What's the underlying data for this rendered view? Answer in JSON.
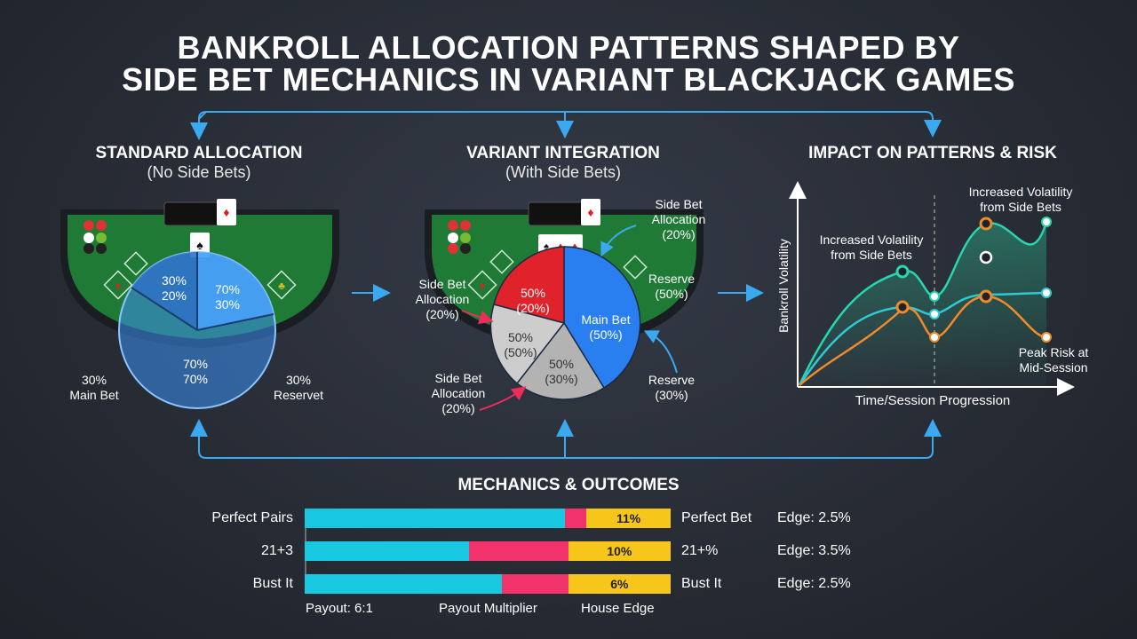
{
  "title_line1": "BANKROLL ALLOCATION PATTERNS SHAPED BY",
  "title_line2": "SIDE BET MECHANICS IN VARIANT BLACKJACK GAMES",
  "sections": {
    "standard": {
      "title": "STANDARD ALLOCATION",
      "subtitle": "(No Side Bets)",
      "pie_labels": [
        "30%",
        "20%",
        "70%",
        "30%",
        "70%",
        "70%"
      ],
      "main_bet_pct": "30%",
      "main_bet_label": "Main Bet",
      "reserve_pct": "30%",
      "reserve_label": "Reservet"
    },
    "variant": {
      "title": "VARIANT INTEGRATION",
      "subtitle": "(With Side Bets)",
      "slices": [
        {
          "name": "red",
          "line1": "50%",
          "line2": "(20%)",
          "color": "#e0222b"
        },
        {
          "name": "main",
          "line1": "Main Bet",
          "line2": "(50%)",
          "color": "#2a7ff0"
        },
        {
          "name": "gray-bottom",
          "line1": "50%",
          "line2": "(30%)",
          "color": "#b9b9b9"
        },
        {
          "name": "gray-left",
          "line1": "50%",
          "line2": "(50%)",
          "color": "#cfcfcf"
        }
      ],
      "callouts": {
        "top_right": [
          "Side Bet",
          "Allocation",
          "(20%)"
        ],
        "right": [
          "Reserve",
          "(50%)"
        ],
        "left": [
          "Side Bet",
          "Allocation",
          "(20%)"
        ],
        "bottom_left": [
          "Side Bet",
          "Allocation",
          "(20%)"
        ],
        "bottom_right": [
          "Reserve",
          "(30%)"
        ]
      }
    },
    "impact": {
      "title": "IMPACT ON PATTERNS & RISK",
      "y_label": "Bankroll Volatility",
      "x_label": "Time/Session Progression",
      "annotation_left": [
        "Increased Volatility",
        "from Side Bets"
      ],
      "annotation_right": [
        "Increased Volatility",
        "from Side Bets"
      ],
      "annotation_peak": [
        "Peak Risk at",
        "Mid-Session"
      ]
    }
  },
  "mechanics": {
    "title": "MECHANICS & OUTCOMES",
    "rows": [
      {
        "label": "Perfect Pairs",
        "cyan": 71,
        "pink": 6,
        "yellow": 23,
        "pct": "11%",
        "name2": "Perfect Bet",
        "edge": "Edge: 2.5%"
      },
      {
        "label": "21+3",
        "cyan": 45,
        "pink": 27,
        "yellow": 28,
        "pct": "10%",
        "name2": "21+%",
        "edge": "Edge: 3.5%"
      },
      {
        "label": "Bust It",
        "cyan": 54,
        "pink": 18,
        "yellow": 28,
        "pct": "6%",
        "name2": "Bust It",
        "edge": "Edge: 2.5%"
      }
    ],
    "legend": [
      "Payout: 6:1",
      "Payout Multiplier",
      "House Edge"
    ]
  },
  "colors": {
    "accent": "#3aa9f0",
    "cyan": "#18c8e0",
    "pink": "#f2336b",
    "yellow": "#f7c61b",
    "felt": "#1f7a35"
  }
}
